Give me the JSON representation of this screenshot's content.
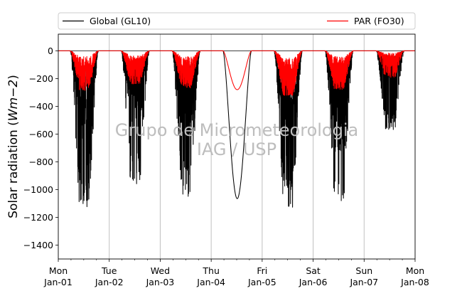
{
  "chart_data": {
    "type": "line",
    "title": "",
    "xlabel": "",
    "ylabel": "Solar radiation (Wm−2)",
    "ylabel_parts": {
      "prefix": "Solar radiation (",
      "math": "Wm−2",
      "suffix": ")"
    },
    "ylim": [
      -1500,
      120
    ],
    "yticks": [
      0,
      -200,
      -400,
      -600,
      -800,
      -1000,
      -1200,
      -1400
    ],
    "ytick_labels": [
      "0",
      "−200",
      "−400",
      "−600",
      "−800",
      "−1000",
      "−1200",
      "−1400"
    ],
    "xlim_days": [
      0,
      7
    ],
    "xticks": [
      {
        "day": "Mon",
        "date": "Jan-01"
      },
      {
        "day": "Tue",
        "date": "Jan-02"
      },
      {
        "day": "Wed",
        "date": "Jan-03"
      },
      {
        "day": "Thu",
        "date": "Jan-04"
      },
      {
        "day": "Fri",
        "date": "Jan-05"
      },
      {
        "day": "Sat",
        "date": "Jan-06"
      },
      {
        "day": "Sun",
        "date": "Jan-07"
      },
      {
        "day": "Mon",
        "date": "Jan-08"
      }
    ],
    "grid": "vertical",
    "legend": {
      "placement": "top, outside plot",
      "entries": [
        "Global (GL10)",
        "PAR (FO30)"
      ]
    },
    "watermark": [
      "Grupo de Micrometeorologia",
      "IAG / USP"
    ],
    "series": [
      {
        "name": "Global (GL10)",
        "color": "#000000",
        "daily_minimum": [
          -1150,
          -960,
          -1050,
          -1065,
          -1150,
          -1100,
          -575
        ],
        "daily_typical_level": [
          -600,
          -400,
          -450,
          -1065,
          -700,
          -550,
          -150
        ],
        "daily_profile": [
          "broken",
          "broken",
          "broken",
          "smooth",
          "broken",
          "broken",
          "broken"
        ]
      },
      {
        "name": "PAR (FO30)",
        "color": "#ff0000",
        "daily_minimum": [
          -290,
          -240,
          -270,
          -280,
          -320,
          -280,
          -200
        ],
        "daily_typical_level": [
          -200,
          -170,
          -190,
          -280,
          -260,
          -200,
          -80
        ],
        "daily_profile": [
          "broken",
          "broken",
          "broken",
          "smooth",
          "broken",
          "broken",
          "broken"
        ]
      }
    ],
    "day_hours_local": {
      "sunrise": 5.6,
      "sunset": 18.9
    }
  }
}
